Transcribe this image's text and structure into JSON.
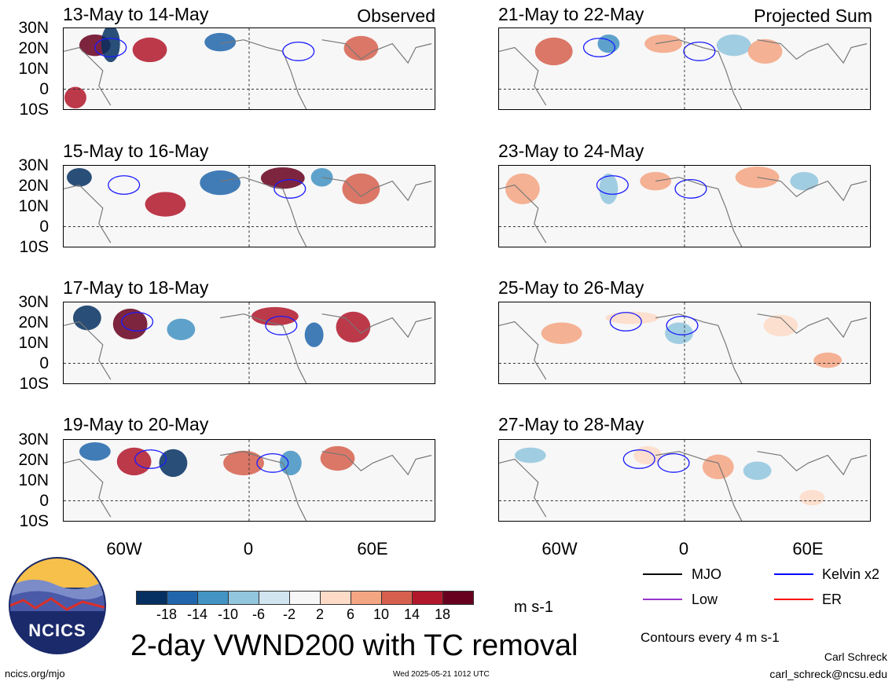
{
  "panels": [
    {
      "title": "13-May to 14-May",
      "note": "Observed"
    },
    {
      "title": "15-May to 16-May",
      "note": ""
    },
    {
      "title": "17-May to 18-May",
      "note": ""
    },
    {
      "title": "19-May to 20-May",
      "note": ""
    },
    {
      "title": "21-May to 22-May",
      "note": "Projected Sum"
    },
    {
      "title": "23-May to 24-May",
      "note": ""
    },
    {
      "title": "25-May to 26-May",
      "note": ""
    },
    {
      "title": "27-May to 28-May",
      "note": ""
    }
  ],
  "y_labels": [
    "30N",
    "20N",
    "10N",
    "0",
    "10S"
  ],
  "x_labels": [
    "60W",
    "0",
    "60E"
  ],
  "colorbar": {
    "ticks": [
      "-18",
      "-14",
      "-10",
      "-6",
      "-2",
      "2",
      "6",
      "10",
      "14",
      "18"
    ],
    "colors": [
      "#053061",
      "#2166ac",
      "#4393c3",
      "#92c5de",
      "#d1e5f0",
      "#f7f7f7",
      "#fddbc7",
      "#f4a582",
      "#d6604d",
      "#b2182b",
      "#67001f"
    ],
    "units": "m s-1"
  },
  "legend": [
    {
      "label": "MJO",
      "color": "#000000"
    },
    {
      "label": "Kelvin x2",
      "color": "#0000ff"
    },
    {
      "label": "Low",
      "color": "#9933cc"
    },
    {
      "label": "ER",
      "color": "#ff0000"
    }
  ],
  "main_title": "2-day VWND200 with TC removal",
  "contour_note": "Contours every 4 m s-1",
  "logo_text": "NCICS",
  "footer": {
    "left": "ncics.org/mjo",
    "center": "Wed 2025-05-21 1012 UTC",
    "right_name": "Carl Schreck",
    "right_email": "carl_schreck@ncsu.edu"
  }
}
